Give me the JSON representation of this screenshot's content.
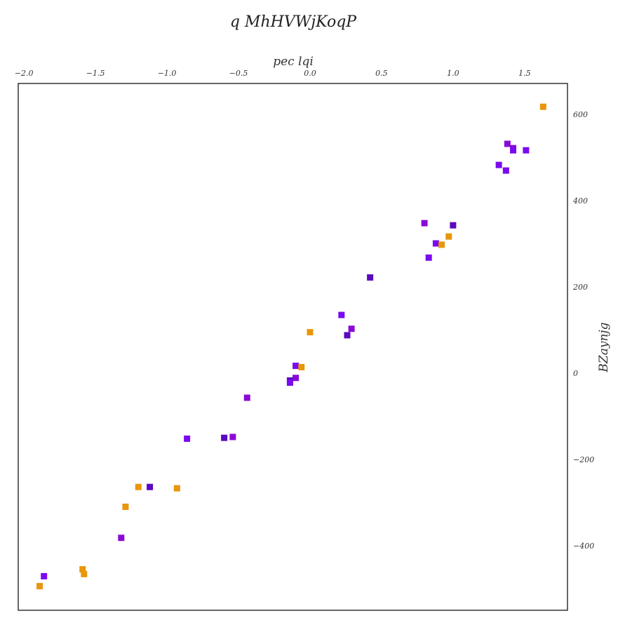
{
  "chart_data": {
    "type": "scatter",
    "title": "q MhHVWjKoqP",
    "xlabel": "pec lqi",
    "ylabel": "BZaynjg",
    "x_axis_position": "top",
    "y_axis_position": "right",
    "xlim": [
      -2.04,
      1.8
    ],
    "ylim": [
      -550,
      672
    ],
    "xticks": [
      -2.0,
      -1.5,
      -1.0,
      -0.5,
      0.0,
      0.5,
      1.0,
      1.5
    ],
    "xtick_labels": [
      "−2.0",
      "−1.5",
      "−1.0",
      "−0.5",
      "0.0",
      "0.5",
      "1.0",
      "1.5"
    ],
    "yticks": [
      -400,
      -200,
      0,
      200,
      400,
      600
    ],
    "ytick_labels": [
      "−400",
      "−200",
      "0",
      "200",
      "400",
      "600"
    ],
    "grid": false,
    "marker": "square",
    "points": [
      {
        "x": 1.63,
        "y": 618,
        "color": "#e8960a"
      },
      {
        "x": 1.38,
        "y": 532,
        "color": "#8a0ad6"
      },
      {
        "x": 1.42,
        "y": 522,
        "color": "#8a0ad6"
      },
      {
        "x": 1.42,
        "y": 517,
        "color": "#7a0af0"
      },
      {
        "x": 1.51,
        "y": 517,
        "color": "#7a0af0"
      },
      {
        "x": 1.32,
        "y": 483,
        "color": "#7a0af0"
      },
      {
        "x": 1.37,
        "y": 470,
        "color": "#7a0af0"
      },
      {
        "x": 0.8,
        "y": 348,
        "color": "#8a0ad6"
      },
      {
        "x": 1.0,
        "y": 343,
        "color": "#5c08c0"
      },
      {
        "x": 0.97,
        "y": 317,
        "color": "#e8960a"
      },
      {
        "x": 0.88,
        "y": 301,
        "color": "#7a0af0"
      },
      {
        "x": 0.92,
        "y": 298,
        "color": "#e8960a"
      },
      {
        "x": 0.83,
        "y": 268,
        "color": "#7a0af0"
      },
      {
        "x": 0.42,
        "y": 222,
        "color": "#5c08c0"
      },
      {
        "x": 0.22,
        "y": 135,
        "color": "#7a0af0"
      },
      {
        "x": 0.29,
        "y": 103,
        "color": "#8a0ad6"
      },
      {
        "x": 0.0,
        "y": 95,
        "color": "#e8960a"
      },
      {
        "x": 0.26,
        "y": 88,
        "color": "#5c08c0"
      },
      {
        "x": -0.1,
        "y": 17,
        "color": "#7a0af0"
      },
      {
        "x": -0.06,
        "y": 14,
        "color": "#e8960a"
      },
      {
        "x": -0.1,
        "y": -11,
        "color": "#8a0ad6"
      },
      {
        "x": -0.14,
        "y": -17,
        "color": "#5c08c0"
      },
      {
        "x": -0.14,
        "y": -22,
        "color": "#7a0af0"
      },
      {
        "x": -0.44,
        "y": -57,
        "color": "#8a0ad6"
      },
      {
        "x": -0.6,
        "y": -150,
        "color": "#5c08c0"
      },
      {
        "x": -0.54,
        "y": -148,
        "color": "#8a0ad6"
      },
      {
        "x": -0.86,
        "y": -152,
        "color": "#7a0af0"
      },
      {
        "x": -1.2,
        "y": -264,
        "color": "#e8960a"
      },
      {
        "x": -1.12,
        "y": -264,
        "color": "#5c08c0"
      },
      {
        "x": -0.93,
        "y": -267,
        "color": "#e8960a"
      },
      {
        "x": -1.29,
        "y": -310,
        "color": "#e8960a"
      },
      {
        "x": -1.32,
        "y": -382,
        "color": "#8a0ad6"
      },
      {
        "x": -1.59,
        "y": -455,
        "color": "#e8960a"
      },
      {
        "x": -1.58,
        "y": -466,
        "color": "#e8960a"
      },
      {
        "x": -1.86,
        "y": -471,
        "color": "#7a0af0"
      },
      {
        "x": -1.89,
        "y": -494,
        "color": "#e8960a"
      }
    ]
  }
}
